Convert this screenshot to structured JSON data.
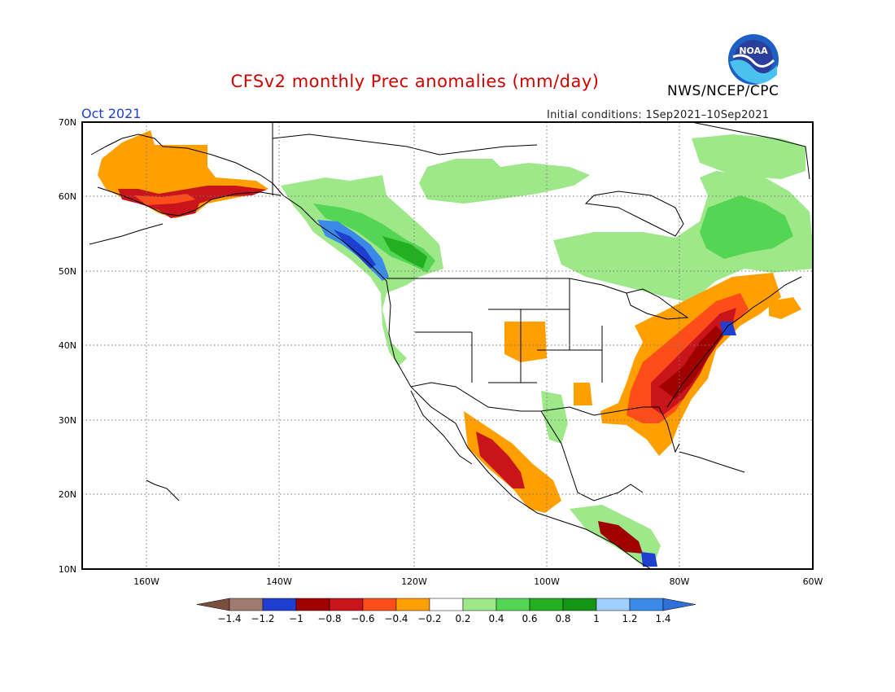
{
  "header": {
    "title": "CFSv2 monthly Prec anomalies (mm/day)",
    "org": "NWS/NCEP/CPC",
    "month": "Oct 2021",
    "initial_conditions": "Initial conditions: 1Sep2021–10Sep2021",
    "logo_text": "NOAA"
  },
  "map": {
    "lat_labels": [
      "70N",
      "60N",
      "50N",
      "40N",
      "30N",
      "20N",
      "10N"
    ],
    "lon_labels": [
      "160W",
      "140W",
      "120W",
      "100W",
      "80W",
      "60W"
    ],
    "land_outline_color": "#000000",
    "grid_color": "#777777"
  },
  "colorbar": {
    "labels": [
      "-1.4",
      "-1.2",
      "-1",
      "-0.8",
      "-0.6",
      "-0.4",
      "-0.2",
      "0.2",
      "0.4",
      "0.6",
      "0.8",
      "1",
      "1.2",
      "1.4"
    ],
    "low_end_color": "#7a4e3e",
    "high_end_color": "#2f6fd8",
    "colors": [
      "#a07a6e",
      "#1f3fd0",
      "#a10000",
      "#c8141a",
      "#ff4d1a",
      "#ff9f00",
      "#ffffff",
      "#9ee88a",
      "#54d654",
      "#22b022",
      "#139613",
      "#9fd0ff",
      "#3b8ae8"
    ]
  },
  "legend_colors": {
    "very_dry": "#a10000",
    "dry": "#c8141a",
    "moderately_dry": "#ff4d1a",
    "slightly_dry": "#ff9f00",
    "slightly_wet": "#9ee88a",
    "wet": "#54d654",
    "very_wet": "#22b022",
    "wettest_blue": "#3b8ae8"
  }
}
